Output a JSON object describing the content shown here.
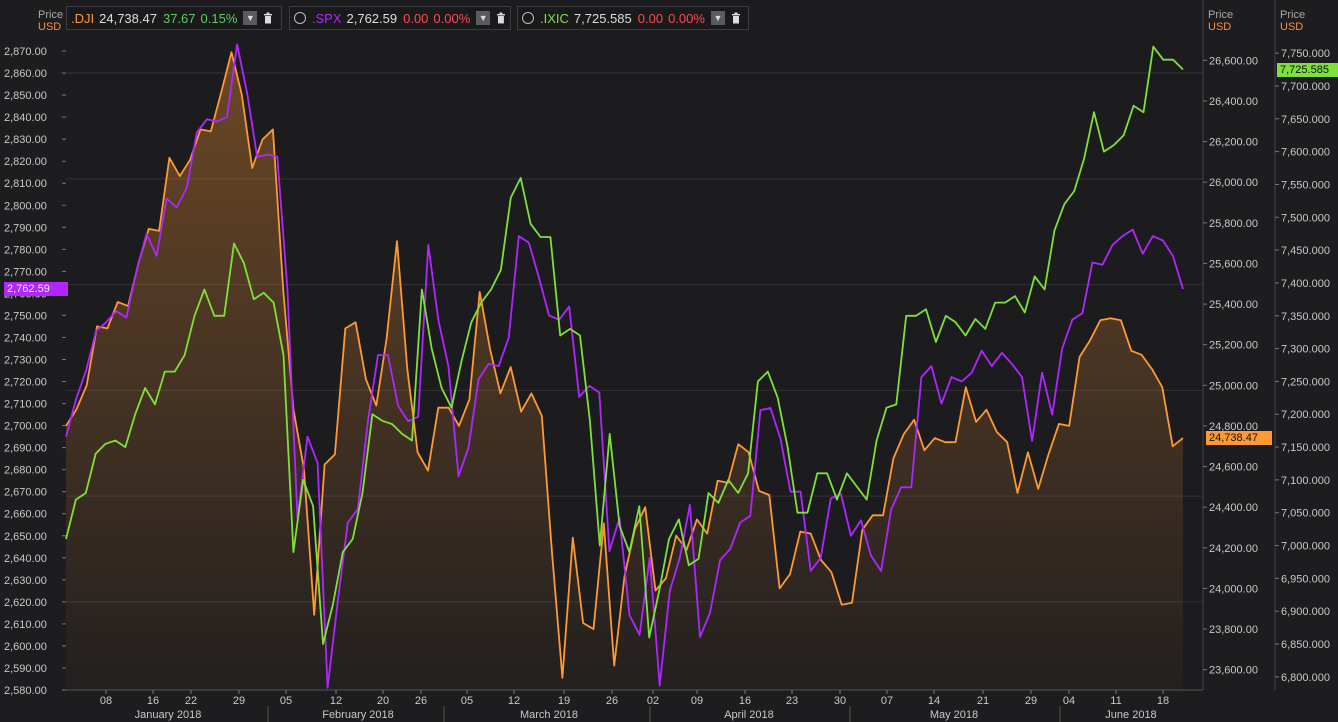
{
  "legend": [
    {
      "symbol": ".DJI",
      "value": "24,738.47",
      "change": "37.67",
      "pct": "0.15%",
      "color": "#ff9933",
      "change_color": "#58d15e",
      "icon": "chevron-down-icon",
      "delete_icon": "trash-icon"
    },
    {
      "symbol": ".SPX",
      "value": "2,762.59",
      "change": "0.00",
      "pct": "0.00%",
      "color": "#b026ff",
      "change_color": "#ff4a4a",
      "icon": "clock-icon",
      "delete_icon": "trash-icon"
    },
    {
      "symbol": ".IXIC",
      "value": "7,725.585",
      "change": "0.00",
      "pct": "0.00%",
      "color": "#7fe03a",
      "change_color": "#ff4a4a",
      "icon": "clock-icon",
      "delete_icon": "trash-icon"
    }
  ],
  "axes": {
    "left": {
      "price": "Price",
      "unit": "USD"
    },
    "mid": {
      "price": "Price",
      "unit": "USD"
    },
    "right": {
      "price": "Price",
      "unit": "USD"
    }
  },
  "tags": {
    "spx": "2,762.59",
    "ixic": "7,725.585",
    "dji": "24,738.47"
  },
  "chart_data": {
    "type": "line",
    "grid": true,
    "x_ticks": [
      "08",
      "16",
      "22",
      "29",
      "05",
      "12",
      "20",
      "26",
      "05",
      "12",
      "19",
      "26",
      "02",
      "09",
      "16",
      "23",
      "30",
      "07",
      "14",
      "21",
      "29",
      "04",
      "11",
      "18"
    ],
    "month_labels": [
      "January 2018",
      "February 2018",
      "March 2018",
      "April 2018",
      "May 2018",
      "June 2018"
    ],
    "left_axis": {
      "series": ".SPX",
      "ylim": [
        2580,
        2875
      ],
      "ticks": [
        "2,870.00",
        "2,860.00",
        "2,850.00",
        "2,840.00",
        "2,830.00",
        "2,820.00",
        "2,810.00",
        "2,800.00",
        "2,790.00",
        "2,780.00",
        "2,770.00",
        "2,760.00",
        "2,750.00",
        "2,740.00",
        "2,730.00",
        "2,720.00",
        "2,710.00",
        "2,700.00",
        "2,690.00",
        "2,680.00",
        "2,670.00",
        "2,660.00",
        "2,650.00",
        "2,640.00",
        "2,630.00",
        "2,620.00",
        "2,610.00",
        "2,600.00",
        "2,590.00",
        "2,580.00"
      ]
    },
    "mid_axis": {
      "series": ".DJI",
      "ylim": [
        23500,
        26700
      ],
      "ticks": [
        "26,600.00",
        "26,400.00",
        "26,200.00",
        "26,000.00",
        "25,800.00",
        "25,600.00",
        "25,400.00",
        "25,200.00",
        "25,000.00",
        "24,800.00",
        "24,600.00",
        "24,400.00",
        "24,200.00",
        "24,000.00",
        "23,800.00",
        "23,600.00"
      ]
    },
    "right_axis": {
      "series": ".IXIC",
      "ylim": [
        6780,
        7770
      ],
      "ticks": [
        "7,750.000",
        "7,700.000",
        "7,650.000",
        "7,600.000",
        "7,550.000",
        "7,500.000",
        "7,450.000",
        "7,400.000",
        "7,350.000",
        "7,300.000",
        "7,250.000",
        "7,200.000",
        "7,150.000",
        "7,100.000",
        "7,050.000",
        "7,000.000",
        "6,950.000",
        "6,900.000",
        "6,850.000",
        "6,800.000"
      ]
    },
    "series": [
      {
        "name": ".DJI",
        "color": "#ff9933",
        "axis": "mid",
        "values": [
          24800,
          24880,
          25000,
          25290,
          25280,
          25410,
          25390,
          25600,
          25770,
          25760,
          26120,
          26030,
          26110,
          26260,
          26250,
          26440,
          26640,
          26430,
          26070,
          26210,
          26260,
          25470,
          24880,
          24590,
          23870,
          24610,
          24660,
          25280,
          25310,
          25030,
          24900,
          25230,
          25710,
          25080,
          24670,
          24580,
          24890,
          24890,
          24800,
          24930,
          25460,
          25180,
          24960,
          25090,
          24870,
          24960,
          24850,
          24170,
          23560,
          24250,
          23830,
          23800,
          24320,
          23620,
          24060,
          24290,
          24400,
          23990,
          24050,
          24260,
          24190,
          24340,
          24270,
          24530,
          24520,
          24710,
          24670,
          24480,
          24460,
          24000,
          24070,
          24280,
          24270,
          24140,
          24080,
          23920,
          23930,
          24290,
          24360,
          24360,
          24640,
          24760,
          24830,
          24680,
          24740,
          24720,
          24720,
          24990,
          24820,
          24880,
          24770,
          24720,
          24470,
          24670,
          24490,
          24660,
          24810,
          24800,
          25140,
          25220,
          25320,
          25330,
          25320,
          25170,
          25150,
          25080,
          24990,
          24700,
          24740
        ]
      },
      {
        "name": ".SPX",
        "color": "#b026ff",
        "axis": "left",
        "values": [
          2695,
          2712,
          2725,
          2743,
          2747,
          2752,
          2749,
          2770,
          2787,
          2777,
          2803,
          2799,
          2808,
          2833,
          2839,
          2838,
          2840,
          2873,
          2851,
          2822,
          2823,
          2822,
          2762,
          2658,
          2695,
          2683,
          2581,
          2620,
          2656,
          2662,
          2702,
          2732,
          2732,
          2709,
          2702,
          2704,
          2782,
          2748,
          2727,
          2677,
          2690,
          2721,
          2728,
          2727,
          2740,
          2786,
          2783,
          2767,
          2750,
          2748,
          2754,
          2713,
          2718,
          2715,
          2643,
          2658,
          2614,
          2605,
          2640,
          2582,
          2625,
          2640,
          2664,
          2604,
          2615,
          2639,
          2644,
          2656,
          2659,
          2707,
          2708,
          2694,
          2670,
          2670,
          2634,
          2640,
          2667,
          2669,
          2650,
          2657,
          2641,
          2634,
          2662,
          2672,
          2672,
          2722,
          2727,
          2710,
          2722,
          2720,
          2724,
          2734,
          2727,
          2733,
          2728,
          2722,
          2693,
          2724,
          2705,
          2735,
          2748,
          2751,
          2774,
          2773,
          2782,
          2786,
          2789,
          2778,
          2786,
          2784,
          2777,
          2762
        ]
      },
      {
        "name": ".IXIC",
        "color": "#7fe03a",
        "axis": "right",
        "values": [
          7010,
          7070,
          7080,
          7140,
          7155,
          7160,
          7150,
          7200,
          7240,
          7215,
          7265,
          7265,
          7290,
          7350,
          7390,
          7350,
          7350,
          7460,
          7430,
          7375,
          7385,
          7370,
          7290,
          6990,
          7100,
          7060,
          6850,
          6910,
          6990,
          7010,
          7080,
          7200,
          7190,
          7185,
          7170,
          7160,
          7390,
          7300,
          7240,
          7210,
          7280,
          7340,
          7370,
          7390,
          7420,
          7530,
          7560,
          7490,
          7470,
          7470,
          7320,
          7330,
          7320,
          7190,
          7000,
          7170,
          7030,
          6990,
          7060,
          6860,
          6930,
          7010,
          7040,
          6970,
          6980,
          7080,
          7065,
          7100,
          7080,
          7110,
          7250,
          7265,
          7225,
          7150,
          7050,
          7050,
          7110,
          7110,
          7070,
          7110,
          7090,
          7070,
          7160,
          7210,
          7215,
          7350,
          7350,
          7360,
          7310,
          7350,
          7340,
          7320,
          7345,
          7330,
          7370,
          7370,
          7380,
          7355,
          7410,
          7390,
          7480,
          7520,
          7540,
          7590,
          7660,
          7600,
          7610,
          7625,
          7670,
          7660,
          7760,
          7740,
          7740,
          7725
        ]
      }
    ]
  }
}
